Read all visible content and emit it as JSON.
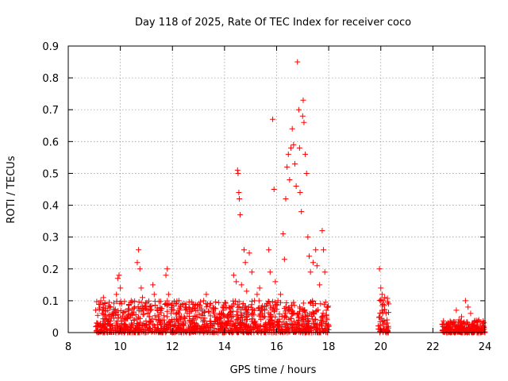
{
  "chart_data": {
    "type": "scatter",
    "title": "Day 118 of 2025, Rate Of TEC Index for receiver coco",
    "xlabel": "GPS time / hours",
    "ylabel": "ROTI / TECUs",
    "xlim": [
      8,
      24
    ],
    "ylim": [
      0,
      0.9
    ],
    "xticks": [
      "8",
      "10",
      "12",
      "14",
      "16",
      "18",
      "20",
      "22",
      "24"
    ],
    "yticks": [
      "0",
      "0.1",
      "0.2",
      "0.3",
      "0.4",
      "0.5",
      "0.6",
      "0.7",
      "0.8",
      "0.9"
    ],
    "grid": true,
    "marker": "+",
    "color": "#ff0000",
    "series": [
      {
        "points": [
          [
            9.15,
            0.02
          ],
          [
            9.25,
            0.1
          ],
          [
            9.3,
            0.06
          ],
          [
            9.35,
            0.11
          ],
          [
            9.45,
            0.04
          ],
          [
            9.6,
            0.02
          ],
          [
            9.75,
            0.06
          ],
          [
            9.85,
            0.12
          ],
          [
            9.9,
            0.17
          ],
          [
            9.95,
            0.18
          ],
          [
            10.0,
            0.14
          ],
          [
            10.05,
            0.09
          ],
          [
            10.15,
            0.04
          ],
          [
            10.3,
            0.05
          ],
          [
            10.45,
            0.06
          ],
          [
            10.55,
            0.08
          ],
          [
            10.65,
            0.22
          ],
          [
            10.7,
            0.26
          ],
          [
            10.75,
            0.2
          ],
          [
            10.8,
            0.14
          ],
          [
            10.85,
            0.11
          ],
          [
            10.95,
            0.08
          ],
          [
            11.05,
            0.06
          ],
          [
            11.15,
            0.07
          ],
          [
            11.25,
            0.15
          ],
          [
            11.3,
            0.12
          ],
          [
            11.45,
            0.05
          ],
          [
            11.6,
            0.04
          ],
          [
            11.75,
            0.18
          ],
          [
            11.8,
            0.2
          ],
          [
            11.85,
            0.12
          ],
          [
            11.95,
            0.06
          ],
          [
            12.05,
            0.07
          ],
          [
            12.15,
            0.09
          ],
          [
            12.25,
            0.1
          ],
          [
            12.35,
            0.05
          ],
          [
            12.5,
            0.03
          ],
          [
            12.7,
            0.02
          ],
          [
            12.9,
            0.05
          ],
          [
            13.05,
            0.08
          ],
          [
            13.2,
            0.1
          ],
          [
            13.3,
            0.12
          ],
          [
            13.45,
            0.09
          ],
          [
            13.6,
            0.06
          ],
          [
            13.8,
            0.04
          ],
          [
            13.95,
            0.07
          ],
          [
            14.1,
            0.05
          ],
          [
            14.25,
            0.08
          ],
          [
            14.35,
            0.18
          ],
          [
            14.45,
            0.16
          ],
          [
            14.5,
            0.51
          ],
          [
            14.52,
            0.5
          ],
          [
            14.55,
            0.44
          ],
          [
            14.57,
            0.42
          ],
          [
            14.6,
            0.37
          ],
          [
            14.65,
            0.15
          ],
          [
            14.75,
            0.26
          ],
          [
            14.8,
            0.22
          ],
          [
            14.85,
            0.13
          ],
          [
            14.95,
            0.25
          ],
          [
            15.05,
            0.19
          ],
          [
            15.15,
            0.1
          ],
          [
            15.25,
            0.12
          ],
          [
            15.35,
            0.14
          ],
          [
            15.45,
            0.06
          ],
          [
            15.55,
            0.05
          ],
          [
            15.7,
            0.26
          ],
          [
            15.75,
            0.19
          ],
          [
            15.85,
            0.67
          ],
          [
            15.9,
            0.45
          ],
          [
            15.95,
            0.16
          ],
          [
            16.05,
            0.1
          ],
          [
            16.15,
            0.12
          ],
          [
            16.25,
            0.31
          ],
          [
            16.3,
            0.23
          ],
          [
            16.35,
            0.42
          ],
          [
            16.4,
            0.52
          ],
          [
            16.45,
            0.56
          ],
          [
            16.5,
            0.48
          ],
          [
            16.55,
            0.58
          ],
          [
            16.6,
            0.64
          ],
          [
            16.65,
            0.59
          ],
          [
            16.7,
            0.53
          ],
          [
            16.75,
            0.46
          ],
          [
            16.8,
            0.85
          ],
          [
            16.85,
            0.7
          ],
          [
            16.88,
            0.58
          ],
          [
            16.9,
            0.44
          ],
          [
            16.95,
            0.38
          ],
          [
            17.0,
            0.68
          ],
          [
            17.02,
            0.73
          ],
          [
            17.05,
            0.66
          ],
          [
            17.1,
            0.56
          ],
          [
            17.15,
            0.5
          ],
          [
            17.2,
            0.3
          ],
          [
            17.25,
            0.24
          ],
          [
            17.3,
            0.19
          ],
          [
            17.4,
            0.22
          ],
          [
            17.5,
            0.26
          ],
          [
            17.55,
            0.21
          ],
          [
            17.65,
            0.15
          ],
          [
            17.75,
            0.32
          ],
          [
            17.8,
            0.26
          ],
          [
            17.85,
            0.19
          ],
          [
            17.95,
            0.08
          ],
          [
            18.0,
            0.02
          ],
          [
            19.95,
            0.2
          ],
          [
            20.0,
            0.14
          ],
          [
            20.05,
            0.12
          ],
          [
            20.1,
            0.1
          ],
          [
            20.15,
            0.11
          ],
          [
            20.2,
            0.06
          ],
          [
            20.25,
            0.03
          ],
          [
            20.3,
            0.09
          ],
          [
            22.5,
            0.01
          ],
          [
            22.6,
            0.02
          ],
          [
            22.75,
            0.03
          ],
          [
            22.9,
            0.07
          ],
          [
            23.0,
            0.04
          ],
          [
            23.1,
            0.05
          ],
          [
            23.25,
            0.1
          ],
          [
            23.35,
            0.08
          ],
          [
            23.45,
            0.06
          ],
          [
            23.55,
            0.03
          ],
          [
            23.7,
            0.02
          ],
          [
            23.85,
            0.01
          ],
          [
            23.95,
            0.02
          ]
        ]
      }
    ],
    "dense_bands": [
      {
        "x": [
          9.05,
          18.0
        ],
        "y": [
          0.0,
          0.1
        ]
      },
      {
        "x": [
          19.9,
          20.3
        ],
        "y": [
          0.0,
          0.11
        ]
      },
      {
        "x": [
          22.35,
          24.0
        ],
        "y": [
          0.0,
          0.04
        ]
      }
    ]
  }
}
